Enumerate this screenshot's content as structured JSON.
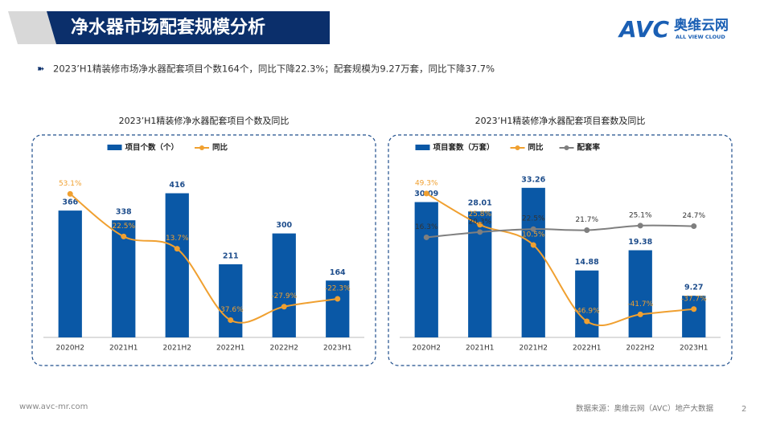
{
  "header": {
    "title": "净水器市场配套规模分析",
    "logo": "AVC",
    "logo_cn": "奥维云网",
    "logo_en": "ALL VIEW CLOUD"
  },
  "summary": "2023’H1精装修市场净水器配套项目个数164个，同比下降22.3%；配套规模为9.27万套，同比下降37.7%",
  "footer": {
    "site": "www.avc-mr.com",
    "source": "数据来源：奥维云网（AVC）地产大数据",
    "page": "2"
  },
  "chart_data": [
    {
      "type": "combo",
      "title": "2023’H1精装修净水器配套项目个数及同比",
      "categories": [
        "2020H2",
        "2021H1",
        "2021H2",
        "2022H1",
        "2022H2",
        "2023H1"
      ],
      "ylim": [
        0,
        510
      ],
      "y2lim": [
        -50,
        77
      ],
      "series": [
        {
          "name": "项目个数（个）",
          "type": "bar",
          "color": "#0a58a6",
          "values": [
            366,
            338,
            416,
            211,
            300,
            164
          ]
        },
        {
          "name": "同比",
          "type": "line",
          "axis": "y2",
          "color": "#f0a030",
          "values": [
            53.1,
            22.5,
            13.7,
            -37.6,
            -27.9,
            -22.3
          ],
          "value_labels": [
            "53.1%",
            "22.5%",
            "13.7%",
            "-37.6%",
            "-27.9%",
            "-22.3%"
          ]
        }
      ]
    },
    {
      "type": "combo",
      "title": "2023’H1精装修净水器配套项目套数及同比",
      "categories": [
        "2020H2",
        "2021H1",
        "2021H2",
        "2022H1",
        "2022H2",
        "2023H1"
      ],
      "ylim": [
        0,
        39.3
      ],
      "y2lim": [
        -59,
        74
      ],
      "series": [
        {
          "name": "项目套数（万套）",
          "type": "bar",
          "color": "#0a58a6",
          "values": [
            30.09,
            28.01,
            33.26,
            14.88,
            19.38,
            9.27
          ]
        },
        {
          "name": "同比",
          "type": "line",
          "axis": "y2",
          "color": "#f0a030",
          "values": [
            49.3,
            25.8,
            10.5,
            -46.9,
            -41.7,
            -37.7
          ],
          "value_labels": [
            "49.3%",
            "25.8%",
            "10.5%",
            "-46.9%",
            "-41.7%",
            "-37.7%"
          ]
        },
        {
          "name": "配套率",
          "type": "line",
          "axis": "y2",
          "color": "#7f7f7f",
          "values": [
            16.3,
            20.3,
            22.5,
            21.7,
            25.1,
            24.7
          ],
          "value_labels": [
            "16.3%",
            "20.3%",
            "22.5%",
            "21.7%",
            "25.1%",
            "24.7%"
          ]
        }
      ]
    }
  ]
}
